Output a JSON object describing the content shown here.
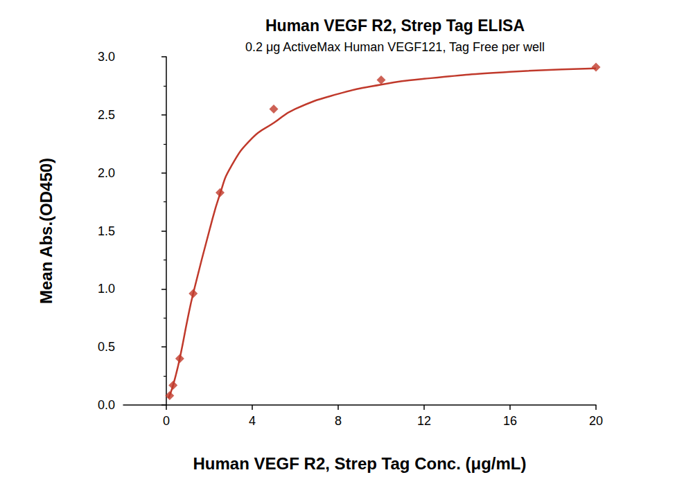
{
  "chart_data": {
    "type": "scatter",
    "title": "Human VEGF R2, Strep Tag ELISA",
    "subtitle": "0.2 μg ActiveMax Human VEGF121, Tag Free per well",
    "x_label": "Human VEGF R2, Strep Tag Conc. (μg/mL)",
    "y_label": "Mean Abs.(OD450)",
    "xlim": [
      -2,
      20
    ],
    "xticks": [
      0,
      4,
      8,
      12,
      16,
      20
    ],
    "ylim": [
      0,
      3
    ],
    "yticks": [
      {
        "value": 0,
        "label": "0.0"
      },
      {
        "value": 0.5,
        "label": "0.5"
      },
      {
        "value": 1,
        "label": "1.0"
      },
      {
        "value": 1.5,
        "label": "1.5"
      },
      {
        "value": 2,
        "label": "2.0"
      },
      {
        "value": 2.5,
        "label": "2.5"
      },
      {
        "value": 3,
        "label": "3.0"
      }
    ],
    "grid": false,
    "series": [
      {
        "type": "scatter",
        "color": "#c0392b",
        "marker": "diamond",
        "x": [
          0.156,
          0.3125,
          0.625,
          1.25,
          2.5,
          5,
          10,
          20
        ],
        "values": [
          0.08,
          0.17,
          0.4,
          0.96,
          1.83,
          2.55,
          2.8,
          2.91
        ]
      },
      {
        "type": "line",
        "color": "#c0392b",
        "line_style": "solid",
        "x": [
          0.1,
          0.3,
          0.6,
          1,
          1.25,
          2,
          2.5,
          3,
          4,
          5,
          6,
          8,
          10,
          12,
          16,
          20
        ],
        "values": [
          0.06,
          0.16,
          0.38,
          0.75,
          0.96,
          1.5,
          1.82,
          2.05,
          2.3,
          2.43,
          2.55,
          2.68,
          2.76,
          2.81,
          2.87,
          2.9
        ]
      }
    ]
  }
}
